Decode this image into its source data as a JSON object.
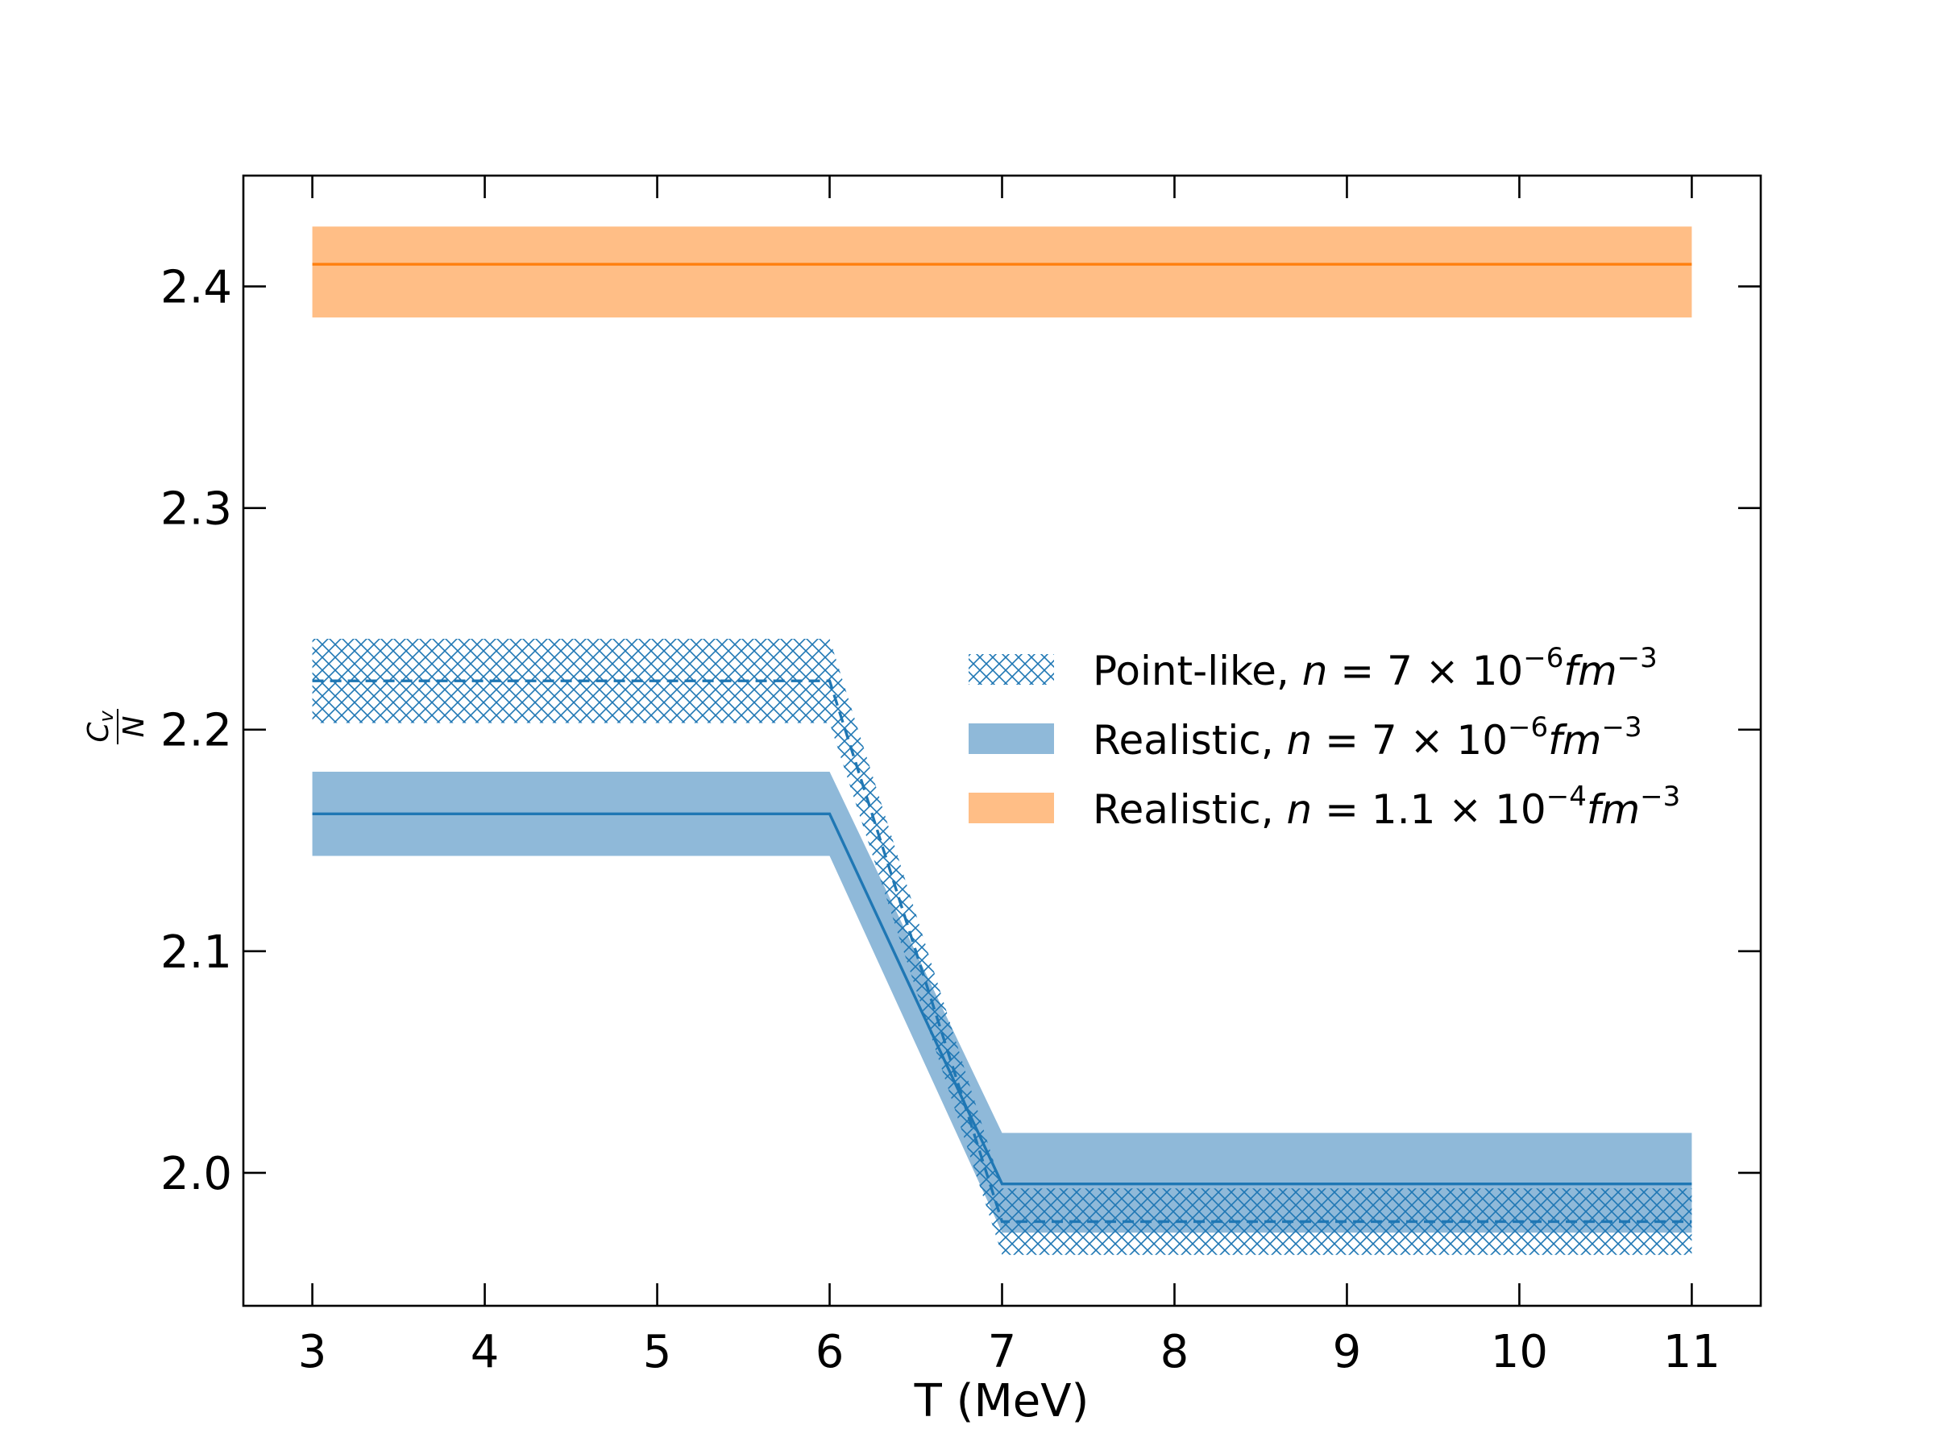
{
  "chart_data": {
    "type": "line",
    "xlabel": "T (MeV)",
    "ylabel": {
      "numerator": "C",
      "numerator_sub": "v",
      "denominator": "N"
    },
    "xlim": [
      2.6,
      11.4
    ],
    "ylim": [
      1.94,
      2.45
    ],
    "xticks": [
      3,
      4,
      5,
      6,
      7,
      8,
      9,
      10,
      11
    ],
    "xtick_labels": [
      "3",
      "4",
      "5",
      "6",
      "7",
      "8",
      "9",
      "10",
      "11"
    ],
    "yticks": [
      2.0,
      2.1,
      2.2,
      2.3,
      2.4
    ],
    "ytick_labels": [
      "2.0",
      "2.1",
      "2.2",
      "2.3",
      "2.4"
    ],
    "grid": false,
    "legend_position": "right",
    "series": [
      {
        "name": "Point-like, n = 7 × 10⁻⁶ fm⁻³",
        "legend": {
          "prefix": "Point-like, ",
          "n": "n",
          "eq": " = 7 × 10",
          "exp": "−6",
          "unit": "fm",
          "unit_exp": "−3"
        },
        "style": "dashed",
        "band": "hatched",
        "color": "#1f77b4",
        "x": [
          3,
          6,
          7,
          11
        ],
        "y": [
          2.222,
          2.222,
          1.978,
          1.978
        ],
        "y_low": [
          2.203,
          2.203,
          1.963,
          1.963
        ],
        "y_high": [
          2.241,
          2.241,
          1.993,
          1.993
        ]
      },
      {
        "name": "Realistic, n = 7 × 10⁻⁶ fm⁻³",
        "legend": {
          "prefix": "Realistic, ",
          "n": "n",
          "eq": " = 7 × 10",
          "exp": "−6",
          "unit": "fm",
          "unit_exp": "−3"
        },
        "style": "solid",
        "band": "filled",
        "color": "#1f77b4",
        "band_color": "#8fb9d9",
        "x": [
          3,
          6,
          7,
          11
        ],
        "y": [
          2.162,
          2.162,
          1.995,
          1.995
        ],
        "y_low": [
          2.143,
          2.143,
          1.973,
          1.973
        ],
        "y_high": [
          2.181,
          2.181,
          2.018,
          2.018
        ]
      },
      {
        "name": "Realistic, n = 1.1 × 10⁻⁴ fm⁻³",
        "legend": {
          "prefix": "Realistic, ",
          "n": "n",
          "eq": " = 1.1 × 10",
          "exp": "−4",
          "unit": "fm",
          "unit_exp": "−3"
        },
        "style": "solid",
        "band": "filled",
        "color": "#ff7f0e",
        "band_color": "#ffbe86",
        "x": [
          3,
          11
        ],
        "y": [
          2.41,
          2.41
        ],
        "y_low": [
          2.386,
          2.386
        ],
        "y_high": [
          2.427,
          2.427
        ]
      }
    ]
  }
}
